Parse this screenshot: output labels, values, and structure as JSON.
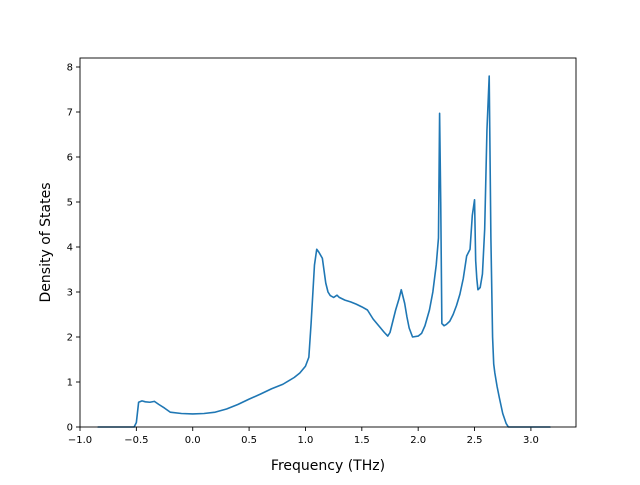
{
  "chart_data": {
    "type": "line",
    "title": "",
    "xlabel": "Frequency (THz)",
    "ylabel": "Density of States",
    "xlim": [
      -1.0,
      3.4
    ],
    "ylim": [
      0,
      8.2
    ],
    "x_ticks": [
      -1.0,
      -0.5,
      0.0,
      0.5,
      1.0,
      1.5,
      2.0,
      2.5,
      3.0
    ],
    "x_tick_labels": [
      "−1.0",
      "−0.5",
      "0.0",
      "0.5",
      "1.0",
      "1.5",
      "2.0",
      "2.5",
      "3.0"
    ],
    "y_ticks": [
      0,
      1,
      2,
      3,
      4,
      5,
      6,
      7,
      8
    ],
    "y_tick_labels": [
      "0",
      "1",
      "2",
      "3",
      "4",
      "5",
      "6",
      "7",
      "8"
    ],
    "grid": false,
    "legend": "none",
    "color": "#1f77b4",
    "series": [
      {
        "x": [
          -0.84,
          -0.6,
          -0.52,
          -0.5,
          -0.48,
          -0.45,
          -0.42,
          -0.38,
          -0.34,
          -0.3,
          -0.25,
          -0.2,
          -0.1,
          0.0,
          0.1,
          0.2,
          0.3,
          0.4,
          0.5,
          0.6,
          0.7,
          0.8,
          0.9,
          0.95,
          1.0,
          1.03,
          1.05,
          1.08,
          1.1,
          1.12,
          1.15,
          1.18,
          1.2,
          1.22,
          1.25,
          1.28,
          1.3,
          1.35,
          1.4,
          1.45,
          1.5,
          1.55,
          1.6,
          1.65,
          1.7,
          1.73,
          1.75,
          1.8,
          1.83,
          1.85,
          1.88,
          1.9,
          1.92,
          1.95,
          2.0,
          2.03,
          2.06,
          2.1,
          2.13,
          2.16,
          2.18,
          2.19,
          2.2,
          2.21,
          2.23,
          2.25,
          2.28,
          2.31,
          2.34,
          2.37,
          2.4,
          2.43,
          2.46,
          2.48,
          2.5,
          2.51,
          2.52,
          2.53,
          2.55,
          2.57,
          2.59,
          2.61,
          2.63,
          2.645,
          2.66,
          2.67,
          2.68,
          2.69,
          2.7,
          2.72,
          2.75,
          2.78,
          2.8,
          2.82,
          2.84,
          2.86,
          2.9,
          3.0,
          3.1,
          3.17
        ],
        "y": [
          0,
          0,
          0,
          0.1,
          0.55,
          0.58,
          0.56,
          0.55,
          0.57,
          0.5,
          0.42,
          0.33,
          0.3,
          0.29,
          0.3,
          0.33,
          0.4,
          0.5,
          0.62,
          0.73,
          0.85,
          0.95,
          1.1,
          1.2,
          1.35,
          1.55,
          2.3,
          3.6,
          3.95,
          3.88,
          3.75,
          3.2,
          3.0,
          2.92,
          2.88,
          2.93,
          2.88,
          2.82,
          2.78,
          2.73,
          2.67,
          2.6,
          2.4,
          2.25,
          2.1,
          2.02,
          2.1,
          2.6,
          2.85,
          3.05,
          2.75,
          2.45,
          2.2,
          2.0,
          2.02,
          2.08,
          2.25,
          2.6,
          3.0,
          3.6,
          4.2,
          6.97,
          5.0,
          2.3,
          2.25,
          2.28,
          2.35,
          2.5,
          2.7,
          2.95,
          3.3,
          3.8,
          3.95,
          4.7,
          5.05,
          3.7,
          3.3,
          3.05,
          3.1,
          3.4,
          4.4,
          6.6,
          7.8,
          4.2,
          2.0,
          1.4,
          1.2,
          1.05,
          0.9,
          0.65,
          0.3,
          0.08,
          0,
          0,
          0,
          0,
          0,
          0,
          0,
          0
        ]
      }
    ]
  }
}
